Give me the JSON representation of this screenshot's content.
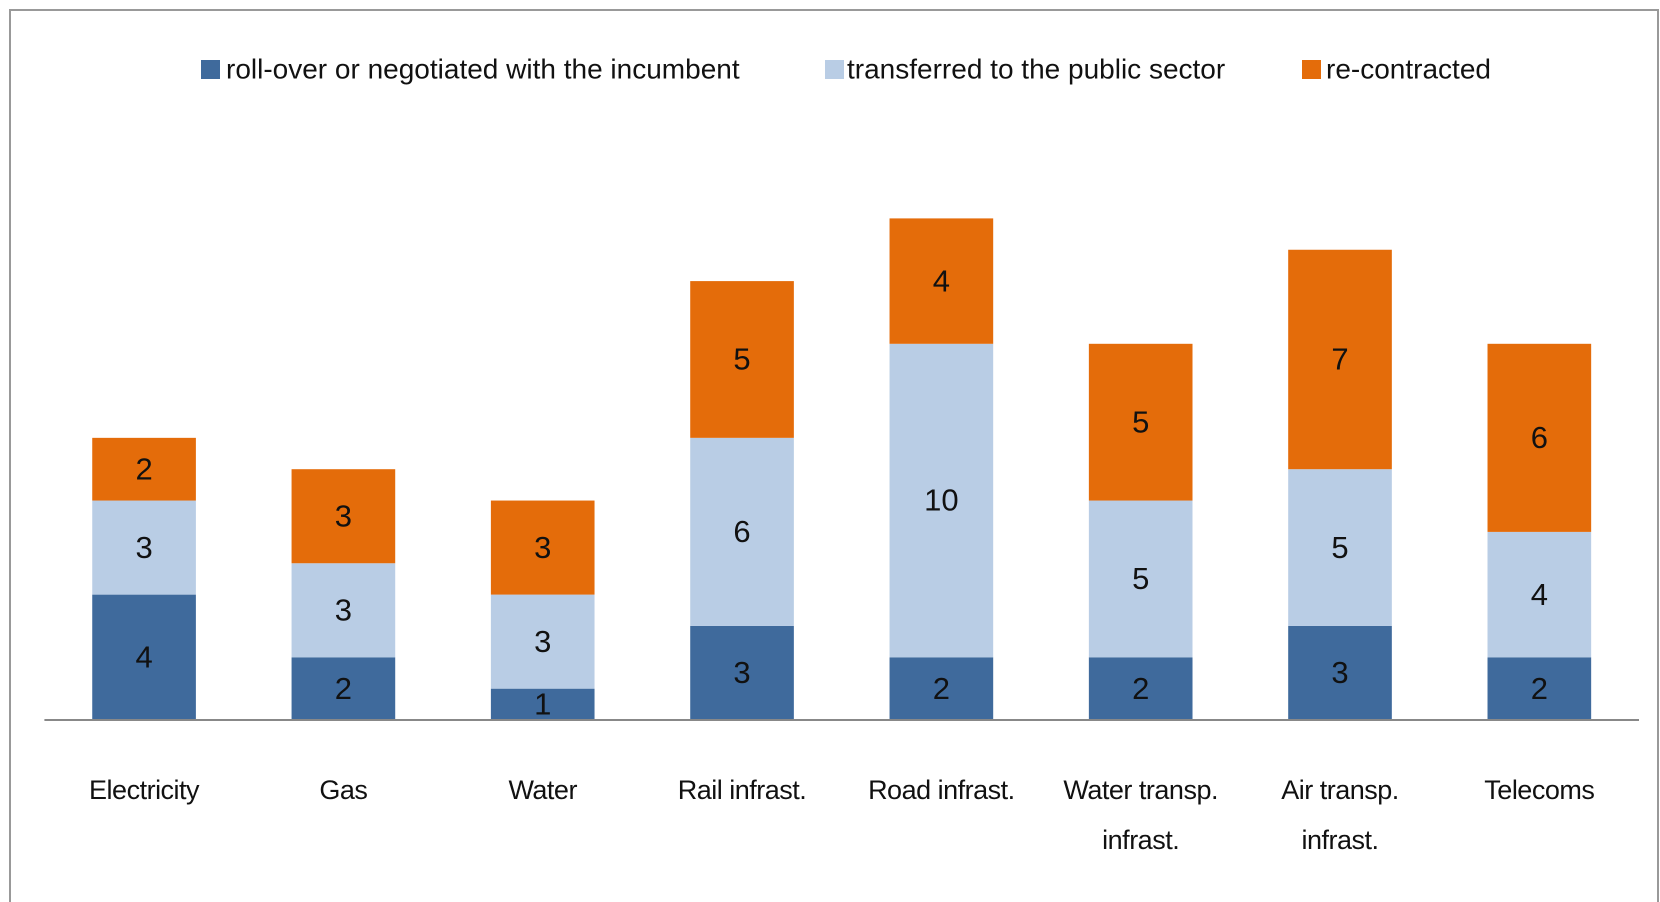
{
  "chart_data": {
    "type": "stacked-bar",
    "categories": [
      "Electricity",
      "Gas",
      "Water",
      "Rail infrast.",
      "Road infrast.",
      "Water transp. infrast.",
      "Air transp. infrast.",
      "Telecoms"
    ],
    "series": [
      {
        "name": "roll-over or negotiated with the incumbent",
        "color": "#3f6a9c",
        "values": [
          4,
          2,
          1,
          3,
          2,
          2,
          3,
          2
        ]
      },
      {
        "name": "transferred to the public sector",
        "color": "#b9cde5",
        "values": [
          3,
          3,
          3,
          6,
          10,
          5,
          5,
          4
        ]
      },
      {
        "name": "re-contracted",
        "color": "#e46c0a",
        "values": [
          2,
          3,
          3,
          5,
          4,
          5,
          7,
          6
        ]
      }
    ],
    "ylim": [
      0,
      20
    ],
    "legend": "top"
  }
}
